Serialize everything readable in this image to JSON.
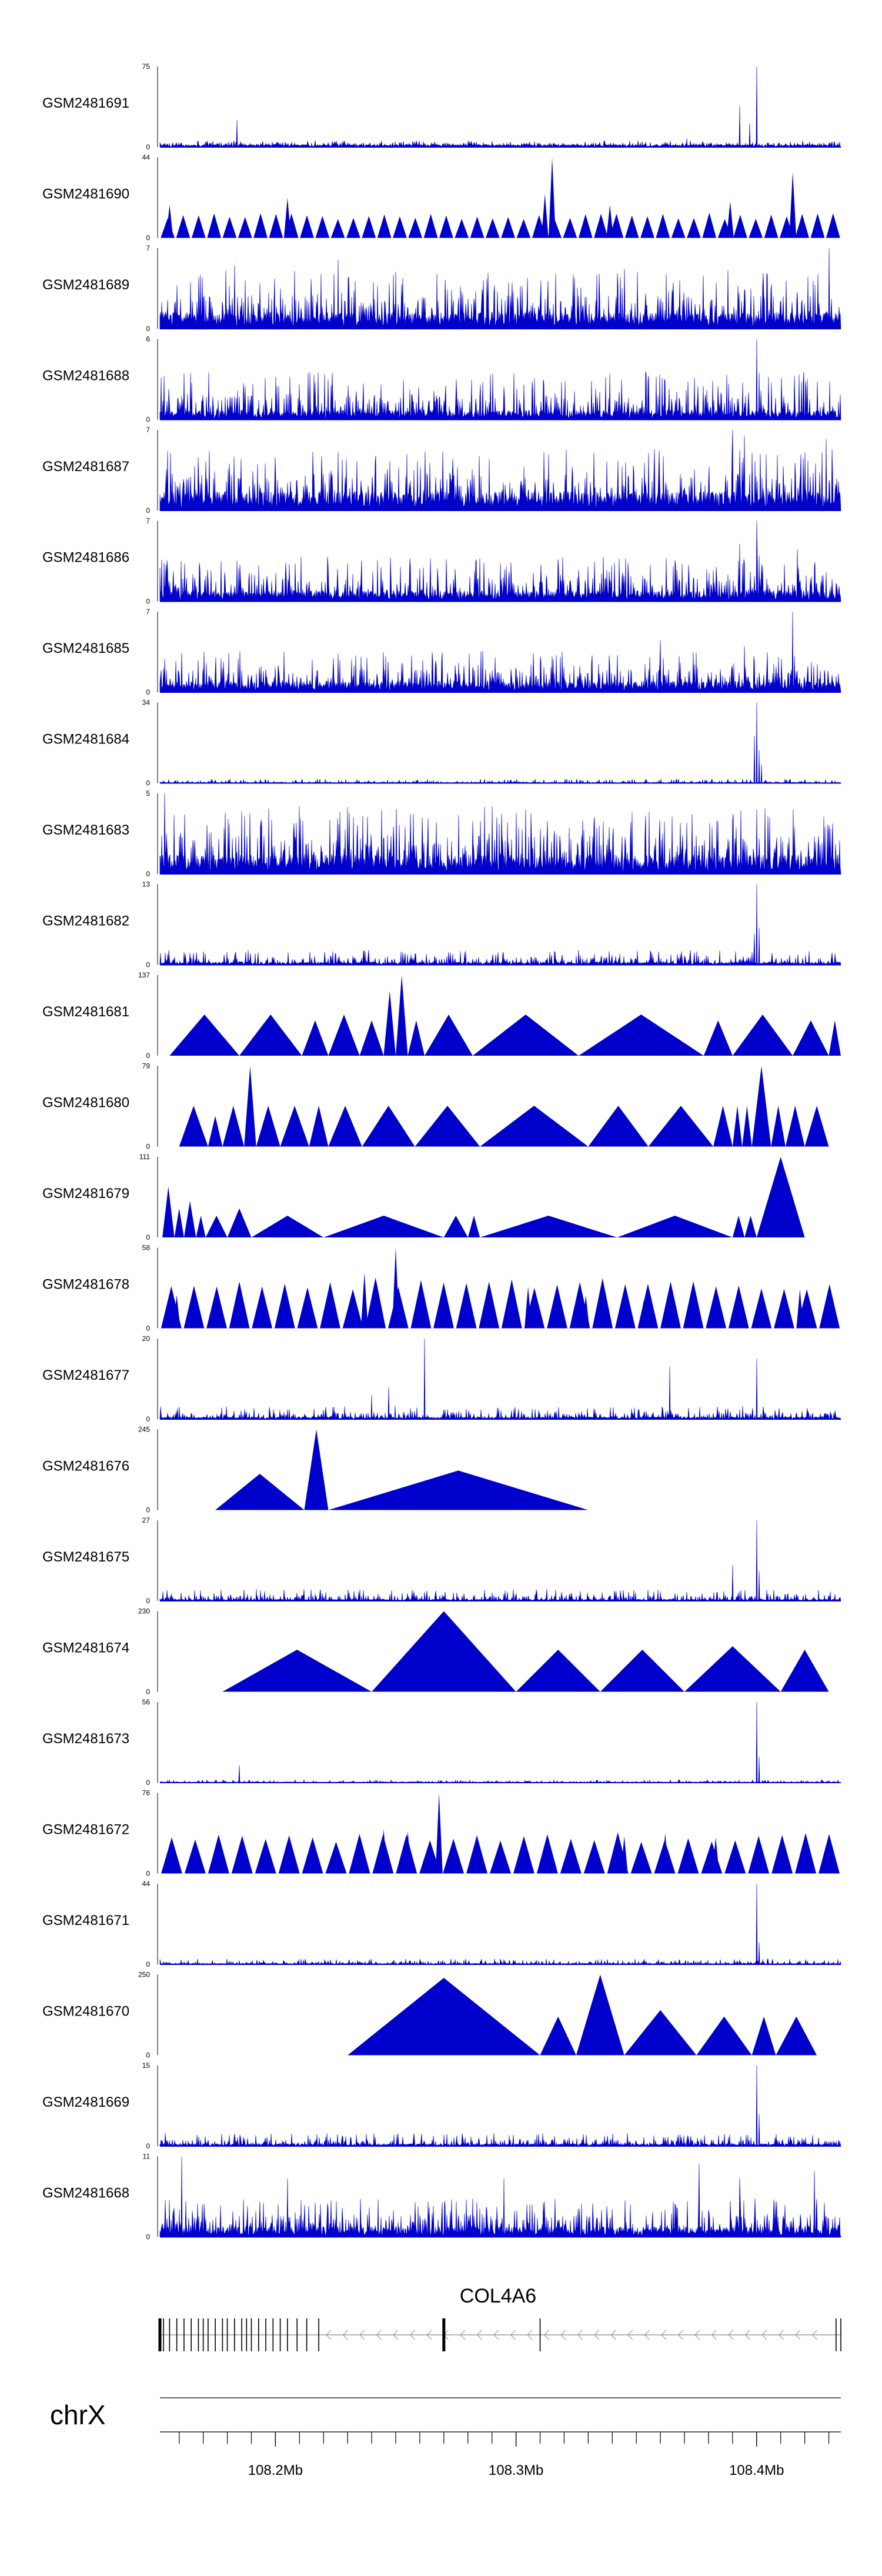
{
  "chart_data": {
    "type": "area",
    "title": "",
    "chromosome": "chrX",
    "x_range_mb": [
      108.152,
      108.435
    ],
    "x_ticks": [
      {
        "value": 108.2,
        "label": "108.2Mb"
      },
      {
        "value": 108.3,
        "label": "108.3Mb"
      },
      {
        "value": 108.4,
        "label": "108.4Mb"
      }
    ],
    "series_color": "#0000cc",
    "series": [
      {
        "name": "GSM2481691",
        "ymax": 75,
        "ymin": 0,
        "style": "dense",
        "base": 2.0,
        "noise": 4.0,
        "peaks": [
          {
            "x": 108.184,
            "h": 25
          },
          {
            "x": 108.393,
            "h": 38
          },
          {
            "x": 108.397,
            "h": 22
          },
          {
            "x": 108.4,
            "h": 75
          },
          {
            "x": 108.371,
            "h": 8
          }
        ]
      },
      {
        "name": "GSM2481690",
        "ymax": 44,
        "ymin": 0,
        "style": "sawtooth",
        "n_tri": 44,
        "tri_h": 12,
        "peaks": [
          {
            "x": 108.156,
            "h": 18
          },
          {
            "x": 108.315,
            "h": 44
          },
          {
            "x": 108.312,
            "h": 24
          },
          {
            "x": 108.415,
            "h": 36
          },
          {
            "x": 108.205,
            "h": 22
          },
          {
            "x": 108.389,
            "h": 20
          },
          {
            "x": 108.339,
            "h": 18
          }
        ]
      },
      {
        "name": "GSM2481689",
        "ymax": 7,
        "ymin": 0,
        "style": "dense",
        "base": 1.2,
        "noise": 3.4,
        "peaks": [
          {
            "x": 108.183,
            "h": 5.5
          },
          {
            "x": 108.226,
            "h": 6
          },
          {
            "x": 108.43,
            "h": 7
          },
          {
            "x": 108.345,
            "h": 5.2
          }
        ]
      },
      {
        "name": "GSM2481688",
        "ymax": 6,
        "ymin": 0,
        "style": "dense",
        "base": 0.6,
        "noise": 2.4,
        "peaks": [
          {
            "x": 108.4,
            "h": 6
          },
          {
            "x": 108.401,
            "h": 3.5
          },
          {
            "x": 108.435,
            "h": 4.5
          }
        ]
      },
      {
        "name": "GSM2481687",
        "ymax": 7,
        "ymin": 0,
        "style": "dense",
        "base": 1.4,
        "noise": 3.6,
        "peaks": [
          {
            "x": 108.39,
            "h": 7
          },
          {
            "x": 108.395,
            "h": 6.5
          },
          {
            "x": 108.429,
            "h": 6.2
          },
          {
            "x": 108.355,
            "h": 5
          }
        ]
      },
      {
        "name": "GSM2481686",
        "ymax": 7,
        "ymin": 0,
        "style": "dense",
        "base": 0.8,
        "noise": 2.6,
        "peaks": [
          {
            "x": 108.4,
            "h": 7
          },
          {
            "x": 108.401,
            "h": 4
          },
          {
            "x": 108.417,
            "h": 4.5
          },
          {
            "x": 108.435,
            "h": 5
          },
          {
            "x": 108.393,
            "h": 5
          }
        ]
      },
      {
        "name": "GSM2481685",
        "ymax": 7,
        "ymin": 0,
        "style": "dense",
        "base": 0.8,
        "noise": 2.4,
        "peaks": [
          {
            "x": 108.415,
            "h": 7
          },
          {
            "x": 108.36,
            "h": 4.5
          },
          {
            "x": 108.395,
            "h": 4
          }
        ]
      },
      {
        "name": "GSM2481684",
        "ymax": 34,
        "ymin": 0,
        "style": "dense",
        "base": 0.3,
        "noise": 1.2,
        "peaks": [
          {
            "x": 108.4,
            "h": 34
          },
          {
            "x": 108.399,
            "h": 20
          },
          {
            "x": 108.401,
            "h": 14
          },
          {
            "x": 108.402,
            "h": 8
          }
        ]
      },
      {
        "name": "GSM2481683",
        "ymax": 5,
        "ymin": 0,
        "style": "dense",
        "base": 1.0,
        "noise": 2.8,
        "peaks": [
          {
            "x": 108.154,
            "h": 5
          },
          {
            "x": 108.21,
            "h": 4.2
          },
          {
            "x": 108.4,
            "h": 4
          },
          {
            "x": 108.3,
            "h": 3.8
          }
        ]
      },
      {
        "name": "GSM2481682",
        "ymax": 13,
        "ymin": 0,
        "style": "dense",
        "base": 0.4,
        "noise": 1.6,
        "peaks": [
          {
            "x": 108.4,
            "h": 13
          },
          {
            "x": 108.401,
            "h": 6
          },
          {
            "x": 108.399,
            "h": 5
          }
        ]
      },
      {
        "name": "GSM2481681",
        "ymax": 137,
        "ymin": 0,
        "style": "triangles",
        "tris": [
          [
            108.156,
            108.185,
            70
          ],
          [
            108.185,
            108.211,
            70
          ],
          [
            108.211,
            108.222,
            60
          ],
          [
            108.222,
            108.235,
            70
          ],
          [
            108.235,
            108.245,
            60
          ],
          [
            108.245,
            108.25,
            110
          ],
          [
            108.25,
            108.255,
            137
          ],
          [
            108.255,
            108.262,
            60
          ],
          [
            108.262,
            108.282,
            70
          ],
          [
            108.282,
            108.326,
            70
          ],
          [
            108.326,
            108.378,
            70
          ],
          [
            108.378,
            108.39,
            60
          ],
          [
            108.39,
            108.415,
            70
          ],
          [
            108.415,
            108.43,
            60
          ],
          [
            108.43,
            108.435,
            60
          ]
        ]
      },
      {
        "name": "GSM2481680",
        "ymax": 79,
        "ymin": 0,
        "style": "triangles",
        "tris": [
          [
            108.16,
            108.172,
            40
          ],
          [
            108.172,
            108.178,
            30
          ],
          [
            108.178,
            108.187,
            40
          ],
          [
            108.187,
            108.192,
            79
          ],
          [
            108.192,
            108.202,
            40
          ],
          [
            108.202,
            108.214,
            40
          ],
          [
            108.214,
            108.222,
            40
          ],
          [
            108.222,
            108.236,
            40
          ],
          [
            108.236,
            108.258,
            40
          ],
          [
            108.258,
            108.285,
            40
          ],
          [
            108.285,
            108.33,
            40
          ],
          [
            108.33,
            108.355,
            40
          ],
          [
            108.355,
            108.382,
            40
          ],
          [
            108.382,
            108.39,
            40
          ],
          [
            108.39,
            108.394,
            40
          ],
          [
            108.394,
            108.398,
            40
          ],
          [
            108.398,
            108.406,
            79
          ],
          [
            108.406,
            108.412,
            40
          ],
          [
            108.412,
            108.42,
            40
          ],
          [
            108.42,
            108.43,
            40
          ]
        ]
      },
      {
        "name": "GSM2481679",
        "ymax": 111,
        "ymin": 0,
        "style": "triangles",
        "tris": [
          [
            108.153,
            108.158,
            70
          ],
          [
            108.158,
            108.162,
            40
          ],
          [
            108.162,
            108.167,
            50
          ],
          [
            108.167,
            108.171,
            30
          ],
          [
            108.171,
            108.18,
            30
          ],
          [
            108.18,
            108.19,
            40
          ],
          [
            108.19,
            108.22,
            30
          ],
          [
            108.22,
            108.27,
            30
          ],
          [
            108.27,
            108.28,
            30
          ],
          [
            108.28,
            108.285,
            30
          ],
          [
            108.285,
            108.342,
            30
          ],
          [
            108.342,
            108.39,
            30
          ],
          [
            108.39,
            108.395,
            30
          ],
          [
            108.395,
            108.4,
            30
          ],
          [
            108.4,
            108.42,
            111
          ]
        ]
      },
      {
        "name": "GSM2481678",
        "ymax": 58,
        "ymin": 0,
        "style": "sawtooth",
        "n_tri": 30,
        "tri_h": 32,
        "peaks": [
          {
            "x": 108.25,
            "h": 58
          },
          {
            "x": 108.305,
            "h": 30
          },
          {
            "x": 108.329,
            "h": 24
          },
          {
            "x": 108.353,
            "h": 20
          },
          {
            "x": 108.418,
            "h": 28
          },
          {
            "x": 108.237,
            "h": 40
          },
          {
            "x": 108.159,
            "h": 24
          }
        ]
      },
      {
        "name": "GSM2481677",
        "ymax": 20,
        "ymin": 0,
        "style": "dense",
        "base": 0.5,
        "noise": 2.2,
        "peaks": [
          {
            "x": 108.262,
            "h": 20
          },
          {
            "x": 108.364,
            "h": 13
          },
          {
            "x": 108.4,
            "h": 15
          },
          {
            "x": 108.247,
            "h": 8
          },
          {
            "x": 108.24,
            "h": 6
          }
        ]
      },
      {
        "name": "GSM2481676",
        "ymax": 245,
        "ymin": 0,
        "style": "triangles",
        "tris": [
          [
            108.175,
            108.212,
            110
          ],
          [
            108.212,
            108.222,
            245
          ],
          [
            108.222,
            108.33,
            120
          ]
        ]
      },
      {
        "name": "GSM2481675",
        "ymax": 27,
        "ymin": 0,
        "style": "dense",
        "base": 0.5,
        "noise": 2.6,
        "peaks": [
          {
            "x": 108.4,
            "h": 27
          },
          {
            "x": 108.39,
            "h": 12
          },
          {
            "x": 108.401,
            "h": 10
          }
        ]
      },
      {
        "name": "GSM2481674",
        "ymax": 230,
        "ymin": 0,
        "style": "triangles",
        "tris": [
          [
            108.178,
            108.24,
            120
          ],
          [
            108.24,
            108.3,
            230
          ],
          [
            108.3,
            108.335,
            120
          ],
          [
            108.335,
            108.37,
            120
          ],
          [
            108.37,
            108.41,
            130
          ],
          [
            108.41,
            108.43,
            120
          ]
        ]
      },
      {
        "name": "GSM2481673",
        "ymax": 56,
        "ymin": 0,
        "style": "dense",
        "base": 0.3,
        "noise": 1.4,
        "peaks": [
          {
            "x": 108.4,
            "h": 56
          },
          {
            "x": 108.185,
            "h": 12
          },
          {
            "x": 108.401,
            "h": 18
          }
        ]
      },
      {
        "name": "GSM2481672",
        "ymax": 76,
        "ymin": 0,
        "style": "sawtooth",
        "n_tri": 29,
        "tri_h": 35,
        "peaks": [
          {
            "x": 108.268,
            "h": 76
          },
          {
            "x": 108.255,
            "h": 40
          },
          {
            "x": 108.345,
            "h": 35
          },
          {
            "x": 108.245,
            "h": 42
          },
          {
            "x": 108.362,
            "h": 38
          },
          {
            "x": 108.383,
            "h": 34
          }
        ]
      },
      {
        "name": "GSM2481671",
        "ymax": 44,
        "ymin": 0,
        "style": "dense",
        "base": 0.5,
        "noise": 2.0,
        "peaks": [
          {
            "x": 108.4,
            "h": 44
          },
          {
            "x": 108.401,
            "h": 12
          }
        ]
      },
      {
        "name": "GSM2481670",
        "ymax": 250,
        "ymin": 0,
        "style": "triangles",
        "tris": [
          [
            108.23,
            108.31,
            240
          ],
          [
            108.31,
            108.325,
            120
          ],
          [
            108.325,
            108.345,
            250
          ],
          [
            108.345,
            108.375,
            140
          ],
          [
            108.375,
            108.398,
            120
          ],
          [
            108.398,
            108.408,
            120
          ],
          [
            108.408,
            108.425,
            120
          ]
        ]
      },
      {
        "name": "GSM2481669",
        "ymax": 15,
        "ymin": 0,
        "style": "dense",
        "base": 0.4,
        "noise": 1.6,
        "peaks": [
          {
            "x": 108.4,
            "h": 15
          },
          {
            "x": 108.401,
            "h": 6
          }
        ]
      },
      {
        "name": "GSM2481668",
        "ymax": 11,
        "ymin": 0,
        "style": "dense",
        "base": 1.2,
        "noise": 3.5,
        "peaks": [
          {
            "x": 108.161,
            "h": 11
          },
          {
            "x": 108.376,
            "h": 10
          },
          {
            "x": 108.424,
            "h": 9
          },
          {
            "x": 108.205,
            "h": 8
          },
          {
            "x": 108.295,
            "h": 8
          },
          {
            "x": 108.393,
            "h": 8
          }
        ]
      }
    ],
    "gene_track": {
      "name": "COL4A6",
      "strand": "-",
      "start_mb": 108.152,
      "end_mb": 108.435,
      "exons_mb": [
        108.152,
        108.1535,
        108.156,
        108.159,
        108.162,
        108.165,
        108.168,
        108.17,
        108.172,
        108.175,
        108.178,
        108.18,
        108.183,
        108.186,
        108.188,
        108.19,
        108.193,
        108.196,
        108.199,
        108.202,
        108.205,
        108.209,
        108.213,
        108.218,
        108.27,
        108.31,
        108.433,
        108.435
      ]
    }
  }
}
